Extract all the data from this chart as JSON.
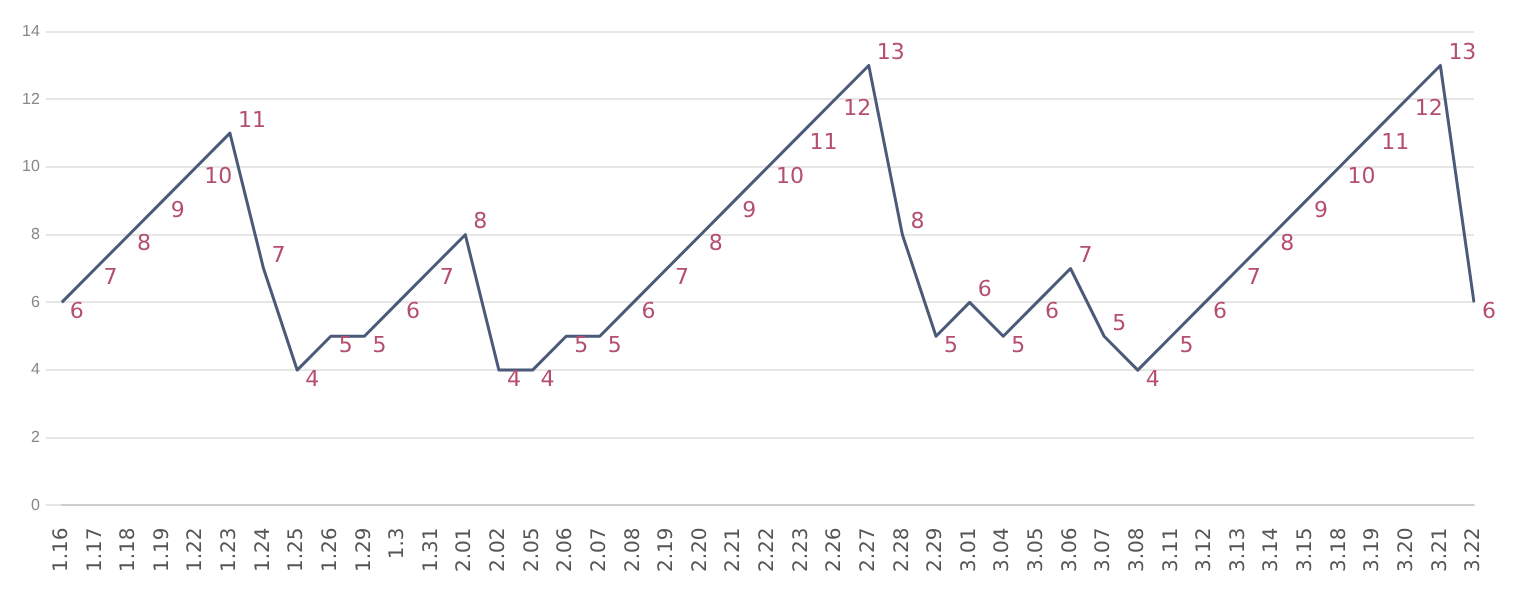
{
  "chart_data": {
    "type": "line",
    "categories": [
      "1.16",
      "1.17",
      "1.18",
      "1.19",
      "1.22",
      "1.23",
      "1.24",
      "1.25",
      "1.26",
      "1.29",
      "1.3",
      "1.31",
      "2.01",
      "2.02",
      "2.05",
      "2.06",
      "2.07",
      "2.08",
      "2.19",
      "2.20",
      "2.21",
      "2.22",
      "2.23",
      "2.26",
      "2.27",
      "2.28",
      "2.29",
      "3.01",
      "3.04",
      "3.05",
      "3.06",
      "3.07",
      "3.08",
      "3.11",
      "3.12",
      "3.13",
      "3.14",
      "3.15",
      "3.18",
      "3.19",
      "3.20",
      "3.21",
      "3.22"
    ],
    "series": [
      {
        "color": "#4a5a78",
        "values": [
          6,
          7,
          8,
          9,
          10,
          11,
          7,
          4,
          5,
          5,
          6,
          7,
          8,
          4,
          4,
          5,
          5,
          6,
          7,
          8,
          9,
          10,
          11,
          12,
          13,
          8,
          5,
          6,
          5,
          6,
          7,
          5,
          4,
          5,
          6,
          7,
          8,
          9,
          10,
          11,
          12,
          13,
          6
        ]
      }
    ],
    "ylim": [
      0,
      14
    ],
    "yticks": [
      0,
      2,
      4,
      6,
      8,
      10,
      12,
      14
    ],
    "grid": "y",
    "legend": false,
    "marker": "none",
    "line_style": "solid",
    "data_labels": true
  }
}
